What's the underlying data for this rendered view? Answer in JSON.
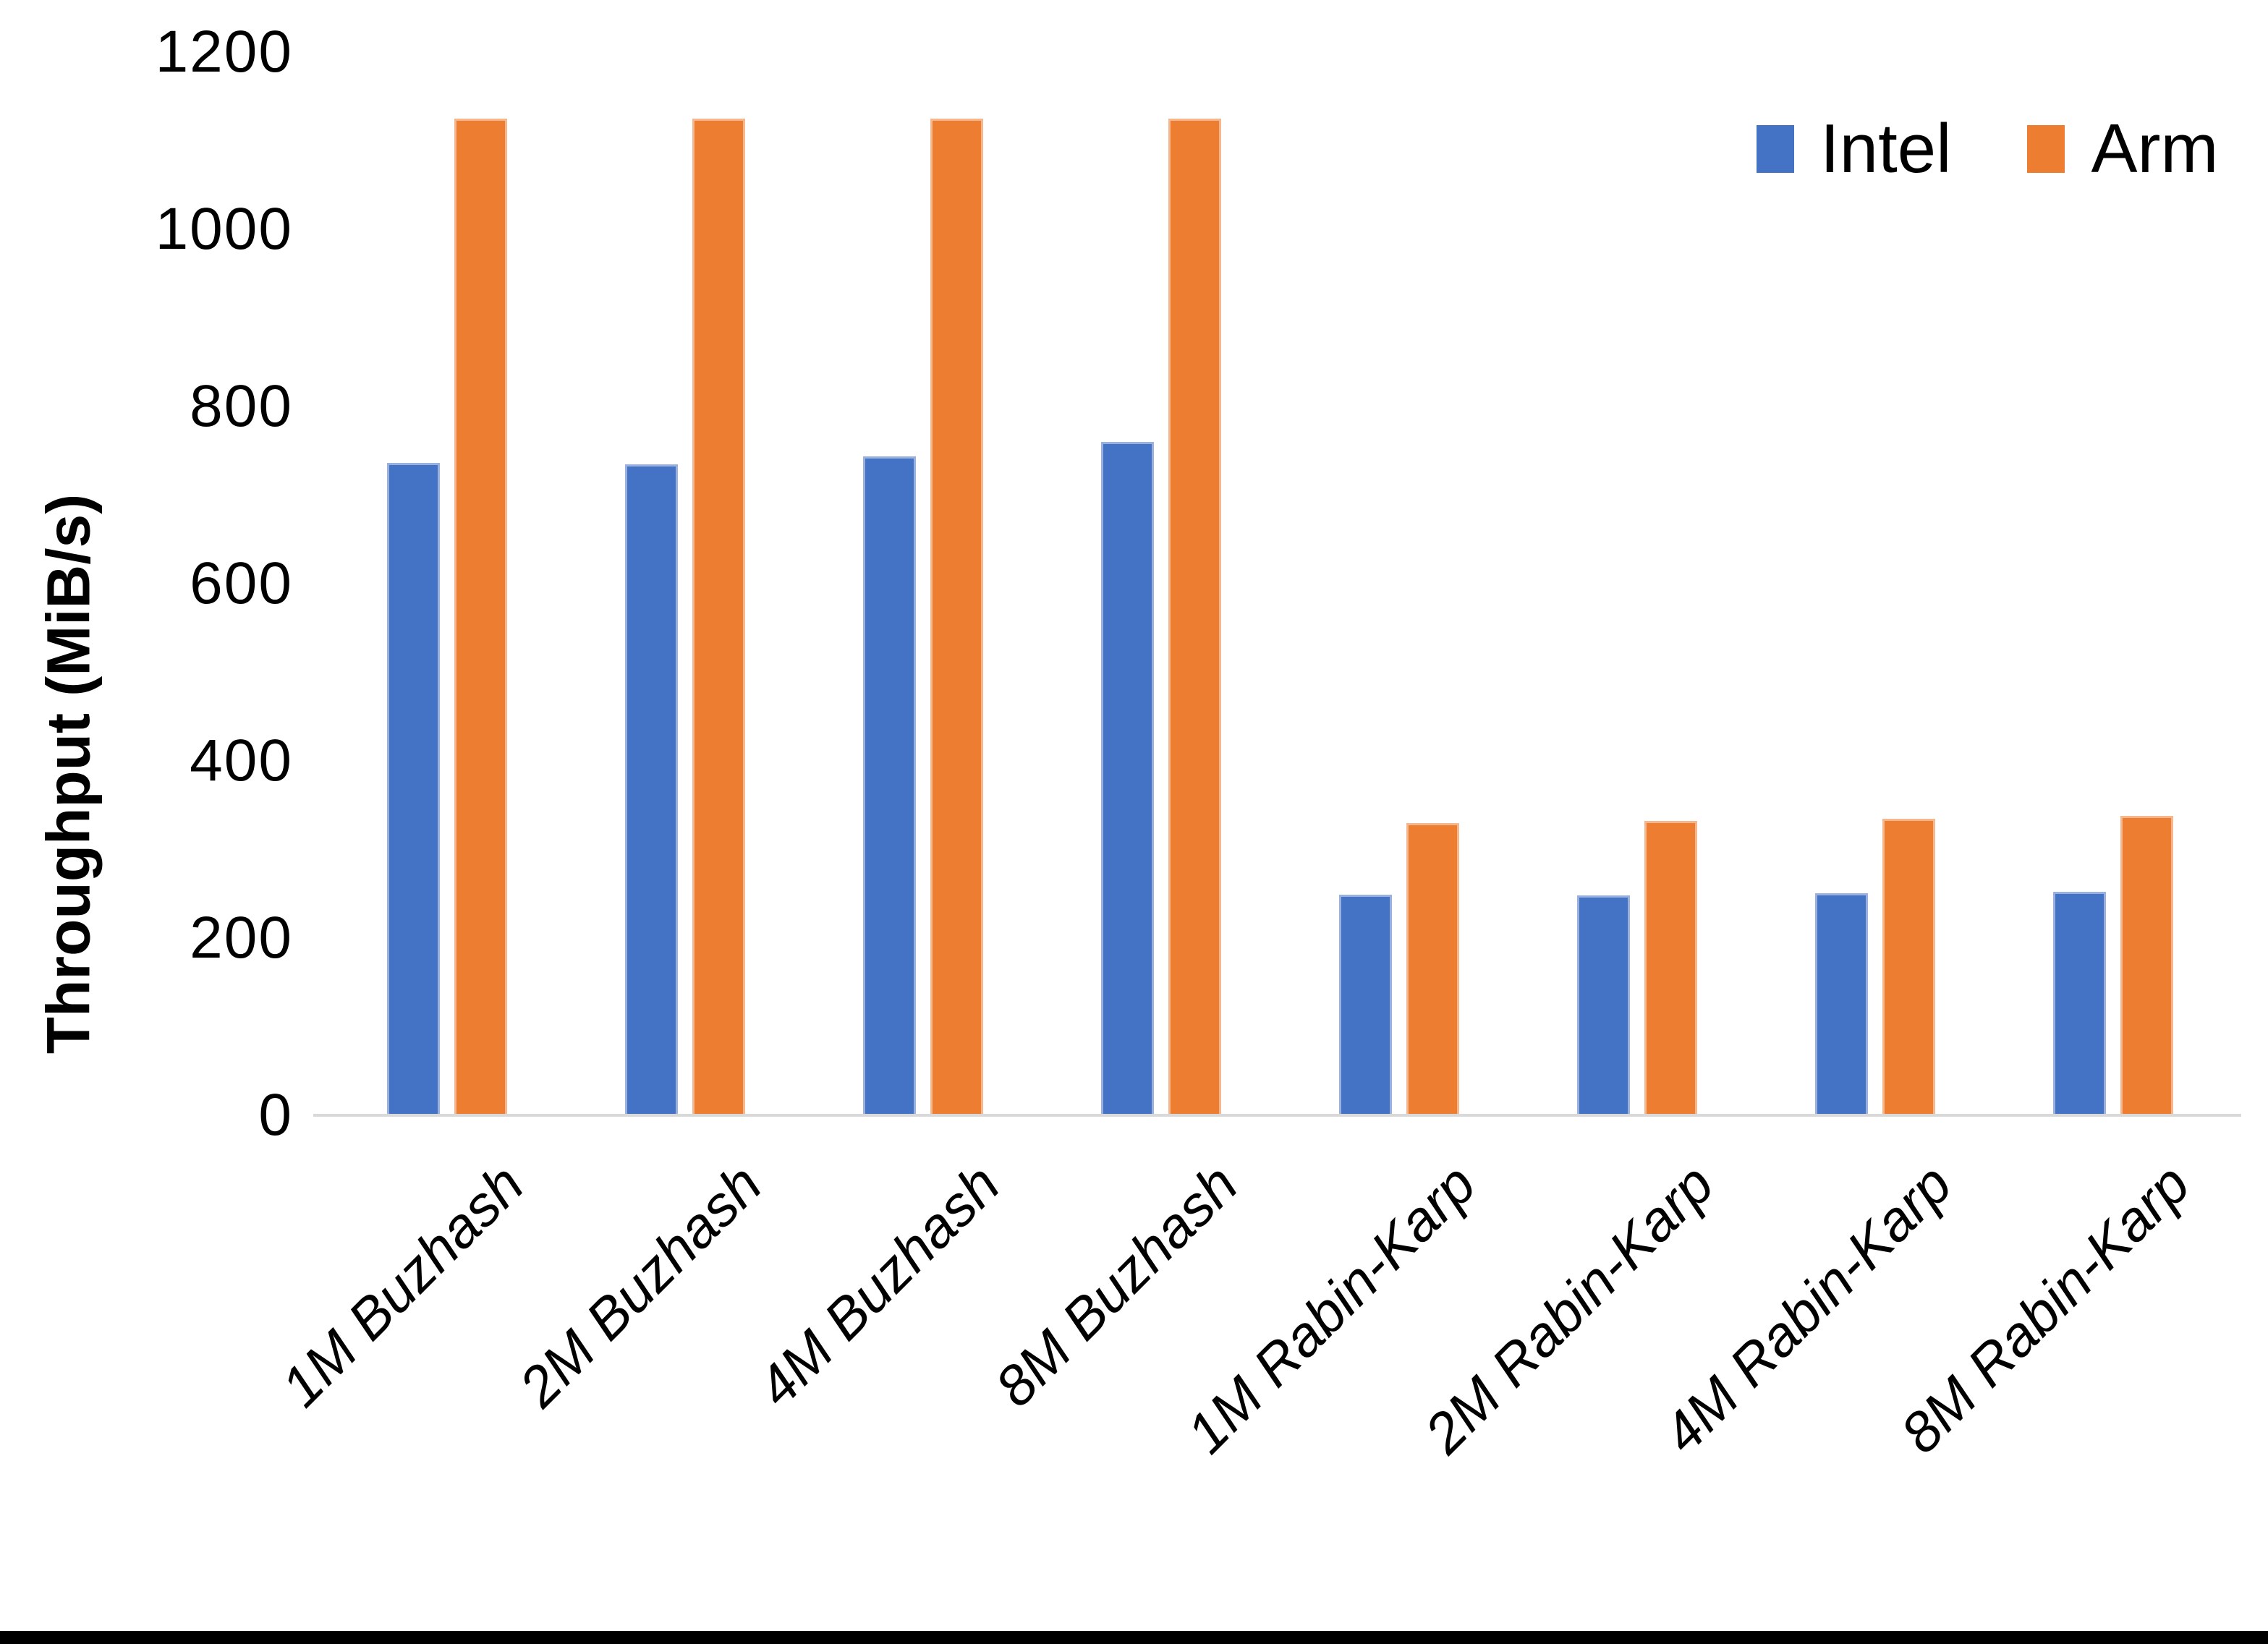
{
  "chart_data": {
    "type": "bar",
    "title": "",
    "xlabel": "",
    "ylabel": "Throughput (MiB/s)",
    "ylim": [
      0,
      1200
    ],
    "yticks": [
      0,
      200,
      400,
      600,
      800,
      1000,
      1200
    ],
    "grid": false,
    "legend_position": "top-right",
    "categories": [
      "1M Buzhash",
      "2M Buzhash",
      "4M Buzhash",
      "8M Buzhash",
      "1M Rabin-Karp",
      "2M Rabin-Karp",
      "4M Rabin-Karp",
      "8M Rabin-Karp"
    ],
    "series": [
      {
        "name": "Intel",
        "color": "#4472C4",
        "values": [
          736,
          735,
          744,
          760,
          249,
          248,
          251,
          252
        ]
      },
      {
        "name": "Arm",
        "color": "#ED7D31",
        "values": [
          1125,
          1125,
          1125,
          1125,
          330,
          332,
          335,
          338
        ]
      }
    ]
  },
  "colors": {
    "background": "#FFFFFF",
    "axis_line": "#D9D9D9",
    "text": "#000000",
    "bottom_bar": "#000000"
  }
}
